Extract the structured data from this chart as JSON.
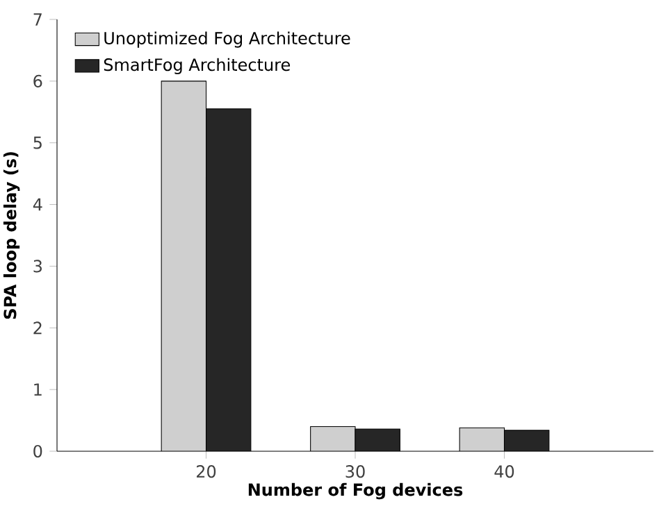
{
  "chart_data": {
    "type": "bar",
    "xlabel": "Number of Fog devices",
    "ylabel": "SPA loop delay (s)",
    "categories": [
      "20",
      "30",
      "40"
    ],
    "series": [
      {
        "name": "Unoptimized Fog Architecture",
        "color": "#cfcfcf",
        "values": [
          6.0,
          0.4,
          0.38
        ]
      },
      {
        "name": "SmartFog Architecture",
        "color": "#262626",
        "values": [
          5.55,
          0.36,
          0.34
        ]
      }
    ],
    "ylim": [
      0,
      7
    ],
    "yticks": [
      0,
      1,
      2,
      3,
      4,
      5,
      6,
      7
    ],
    "legend": "top left",
    "grid": false
  }
}
